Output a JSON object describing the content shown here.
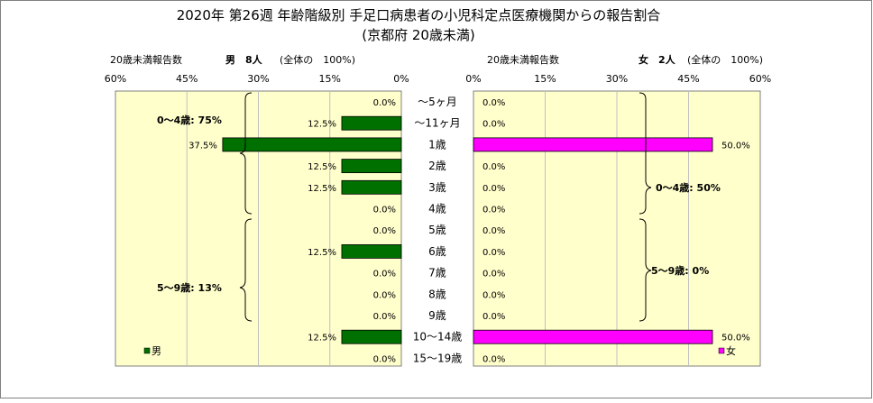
{
  "title_line1": "2020年 第26週 年齢階級別 手足口病患者の小児科定点医療機関からの報告割合",
  "title_line2": "(京都府 20歳未満)",
  "colors": {
    "male": "#007100",
    "female": "#ff00ff",
    "plot_bg": "#ffffcc",
    "grid": "#c0c0c0"
  },
  "chart_data": {
    "type": "bar",
    "orientation": "horizontal-butterfly",
    "categories": [
      "〜5ヶ月",
      "〜11ヶ月",
      "1歳",
      "2歳",
      "3歳",
      "4歳",
      "5歳",
      "6歳",
      "7歳",
      "8歳",
      "9歳",
      "10〜14歳",
      "15〜19歳"
    ],
    "xlim": [
      0,
      60
    ],
    "xticks": [
      "0%",
      "15%",
      "30%",
      "45%",
      "60%"
    ],
    "grid": true,
    "series": [
      {
        "name": "男",
        "side": "left",
        "values": [
          0.0,
          12.5,
          37.5,
          12.5,
          12.5,
          0.0,
          0.0,
          12.5,
          0.0,
          0.0,
          0.0,
          12.5,
          0.0
        ],
        "labels": [
          "0.0%",
          "12.5%",
          "37.5%",
          "12.5%",
          "12.5%",
          "0.0%",
          "0.0%",
          "12.5%",
          "0.0%",
          "0.0%",
          "0.0%",
          "12.5%",
          "0.0%"
        ],
        "header_label": "20歳未満報告数",
        "header_count": "男　8人",
        "header_note": "(全体の　100%)",
        "xticks": [
          "60%",
          "45%",
          "30%",
          "15%",
          "0%"
        ],
        "annotations": [
          "0〜4歳: 75%",
          "5〜9歳: 13%"
        ]
      },
      {
        "name": "女",
        "side": "right",
        "values": [
          0.0,
          0.0,
          50.0,
          0.0,
          0.0,
          0.0,
          0.0,
          0.0,
          0.0,
          0.0,
          0.0,
          50.0,
          0.0
        ],
        "labels": [
          "0.0%",
          "0.0%",
          "50.0%",
          "0.0%",
          "0.0%",
          "0.0%",
          "0.0%",
          "0.0%",
          "0.0%",
          "0.0%",
          "0.0%",
          "50.0%",
          "0.0%"
        ],
        "header_label": "20歳未満報告数",
        "header_count": "女　2人",
        "header_note": "(全体の　100%)",
        "xticks": [
          "0%",
          "15%",
          "30%",
          "45%",
          "60%"
        ],
        "annotations": [
          "0〜4歳: 50%",
          "5〜9歳: 0%"
        ]
      }
    ]
  }
}
